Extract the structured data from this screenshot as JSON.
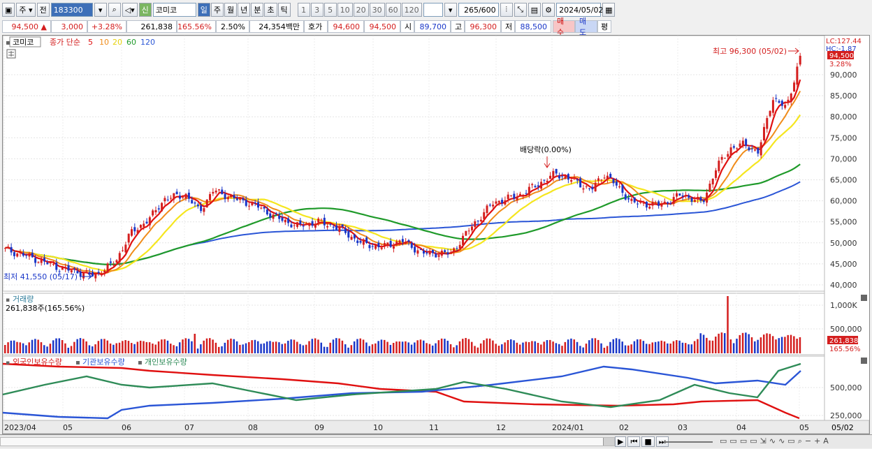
{
  "toolbar": {
    "period_type": "주",
    "prev_label": "전",
    "stock_code": "183300",
    "credit_label": "신",
    "stock_name": "코미코",
    "periods": [
      "일",
      "주",
      "월",
      "년",
      "분",
      "초",
      "틱"
    ],
    "active_period": "일",
    "intervals": [
      "1",
      "3",
      "5",
      "10",
      "20",
      "30",
      "60",
      "120"
    ],
    "count": "265",
    "count_total": "/600",
    "date": "2024/05/02"
  },
  "quote": {
    "price": "94,500",
    "change": "3,000",
    "change_pct": "+3.28%",
    "volume": "261,838",
    "vol_ratio": "165.56%",
    "turnover": "2.50%",
    "amount": "24,354백만",
    "ask_label": "호가",
    "ask": "94,600",
    "bid": "94,500",
    "open_label": "시",
    "open": "89,700",
    "high_label": "고",
    "high": "96,300",
    "low_label": "저",
    "low": "88,500",
    "buy_label": "매수",
    "sell_label": "매도",
    "avg_label": "평"
  },
  "price_panel": {
    "legend_name": "코미코",
    "ma_label": "종가 단순",
    "ma_periods": [
      "5",
      "10",
      "20",
      "60",
      "120"
    ],
    "lc_label": "LC:127.44",
    "hc_label": "HC:-1.87",
    "current_price_box": "94,500",
    "current_pct": "3.28%",
    "high_annot": "최고 96,300 (05/02)",
    "low_annot": "최저 41,550 (05/17)",
    "dividend_annot": "배당락(0.00%)",
    "y_ticks": [
      "90,000",
      "85,000",
      "80,000",
      "75,000",
      "70,000",
      "65,000",
      "60,000",
      "55,000",
      "50,000",
      "45,000",
      "40,000"
    ]
  },
  "volume_panel": {
    "title": "거래량",
    "value_label": "261,838주(165.56%)",
    "y_ticks": [
      "1,000K",
      "500,000"
    ],
    "current_box": "261,838",
    "current_pct": "165.56%"
  },
  "holding_panel": {
    "legend": [
      "외국인보유수량",
      "기관보유수량",
      "개인보유수량"
    ],
    "y_ticks": [
      "500,000",
      "250,000"
    ]
  },
  "x_axis": {
    "labels": [
      "2023/04",
      "05",
      "06",
      "07",
      "08",
      "09",
      "10",
      "11",
      "12",
      "2024/01",
      "02",
      "03",
      "04",
      "05"
    ],
    "last_date": "05/02"
  },
  "colors": {
    "up": "#d41e1e",
    "down": "#1a37c8",
    "ma5": "#e01010",
    "ma10": "#f08c1a",
    "ma20": "#f5e61e",
    "ma60": "#1f9a2a",
    "ma120": "#2a55d6",
    "foreign": "#e01010",
    "institution": "#2a55d6",
    "individual": "#2e8b57"
  }
}
